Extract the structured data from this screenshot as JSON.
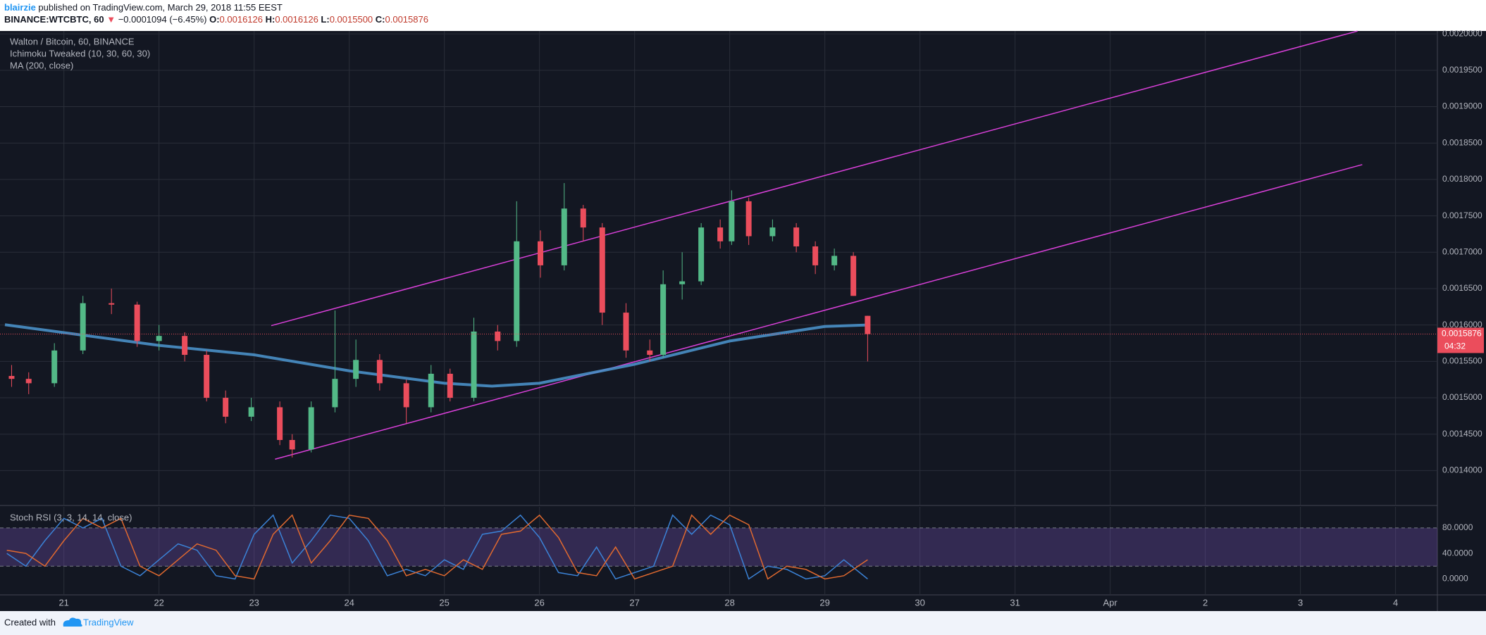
{
  "header": {
    "author": "blairzie",
    "published": "published on TradingView.com, March 29, 2018 11:55 EEST",
    "symbol": "BINANCE:WTCBTC, 60",
    "arrow": "▼",
    "change": "−0.0001094 (−6.45%)",
    "o_label": "O:",
    "open": "0.0016126",
    "h_label": "H:",
    "high": "0.0016126",
    "l_label": "L:",
    "low": "0.0015500",
    "c_label": "C:",
    "close": "0.0015876"
  },
  "footer": {
    "text": "Created with",
    "brand": "TradingView"
  },
  "chart_data": [
    {
      "type": "candlestick",
      "title": "Walton / Bitcoin, 60, BINANCE",
      "indicator": "Ichimoku Tweaked (10, 30, 60, 30)",
      "up_color": "#53b987",
      "down_color": "#eb4d5c",
      "x": [
        20.45,
        20.63,
        20.9,
        21.2,
        21.5,
        21.77,
        22,
        22.27,
        22.5,
        22.7,
        22.97,
        23.27,
        23.4,
        23.6,
        23.85,
        24.07,
        24.32,
        24.6,
        24.86,
        25.06,
        25.31,
        25.56,
        25.76,
        26.01,
        26.26,
        26.46,
        26.66,
        26.91,
        27.16,
        27.3,
        27.5,
        27.7,
        27.9,
        28.02,
        28.2,
        28.45,
        28.7,
        28.9,
        29.1,
        29.3,
        29.45
      ],
      "open": [
        0.00153,
        0.001526,
        0.00152,
        0.001565,
        0.00163,
        0.001628,
        0.001578,
        0.001585,
        0.001559,
        0.0015,
        0.001474,
        0.001487,
        0.001442,
        0.001429,
        0.001487,
        0.001526,
        0.001552,
        0.00152,
        0.001487,
        0.001533,
        0.0015,
        0.001591,
        0.001578,
        0.001715,
        0.001682,
        0.00176,
        0.001734,
        0.001617,
        0.001565,
        0.001559,
        0.001656,
        0.00166,
        0.001734,
        0.001715,
        0.00177,
        0.001722,
        0.001734,
        0.001708,
        0.001682,
        0.001695,
        0.0016126
      ],
      "high": [
        0.001545,
        0.001535,
        0.001575,
        0.00164,
        0.00165,
        0.001632,
        0.0016,
        0.00159,
        0.001565,
        0.00151,
        0.0015,
        0.001495,
        0.00145,
        0.001495,
        0.00162,
        0.00158,
        0.00156,
        0.001525,
        0.001545,
        0.00154,
        0.00161,
        0.0016,
        0.00177,
        0.00173,
        0.001795,
        0.001765,
        0.00174,
        0.00163,
        0.00158,
        0.001675,
        0.0017,
        0.00174,
        0.001745,
        0.001785,
        0.001775,
        0.001745,
        0.00174,
        0.001715,
        0.001705,
        0.0017,
        0.0016126
      ],
      "low": [
        0.001515,
        0.001505,
        0.001515,
        0.00156,
        0.001615,
        0.00157,
        0.001565,
        0.00155,
        0.001495,
        0.001465,
        0.001468,
        0.001435,
        0.001418,
        0.001425,
        0.00148,
        0.001515,
        0.00151,
        0.001465,
        0.00148,
        0.001495,
        0.001495,
        0.001565,
        0.00157,
        0.001665,
        0.001675,
        0.001715,
        0.0016,
        0.001555,
        0.00155,
        0.001555,
        0.001635,
        0.001655,
        0.001705,
        0.00171,
        0.00171,
        0.001715,
        0.0017,
        0.00167,
        0.001675,
        0.00164,
        0.00155
      ],
      "close": [
        0.001526,
        0.00152,
        0.001565,
        0.00163,
        0.001628,
        0.001578,
        0.001585,
        0.001559,
        0.0015,
        0.001474,
        0.001487,
        0.001442,
        0.001429,
        0.001487,
        0.001526,
        0.001552,
        0.00152,
        0.001487,
        0.001533,
        0.0015,
        0.001591,
        0.001578,
        0.001715,
        0.001682,
        0.00176,
        0.001734,
        0.001617,
        0.001565,
        0.001559,
        0.001656,
        0.00166,
        0.001734,
        0.001715,
        0.00177,
        0.001722,
        0.001734,
        0.001708,
        0.001682,
        0.001695,
        0.00164,
        0.0015876
      ],
      "ma": {
        "name": "MA (200, close)",
        "color": "#4a90c8",
        "x": [
          20.38,
          22,
          23,
          24,
          25,
          25.5,
          26,
          27,
          28,
          29,
          29.45
        ],
        "values": [
          0.0016004,
          0.001572,
          0.001559,
          0.001537,
          0.00152,
          0.001516,
          0.00152,
          0.001546,
          0.001578,
          0.001598,
          0.0016
        ]
      },
      "trendlines": [
        {
          "color": "#d940d9",
          "x": [
            23.18,
            34.6
          ],
          "values": [
            0.0015991,
            0.0020039
          ]
        },
        {
          "color": "#d940d9",
          "x": [
            23.22,
            34.65
          ],
          "values": [
            0.0014156,
            0.0018204
          ]
        }
      ],
      "last_price": {
        "value": 0.0015876,
        "label": "0.0015876"
      },
      "countdown": "04:32",
      "xlim": [
        20.38,
        35.44
      ],
      "ylim": [
        0.001353,
        0.002004
      ],
      "xticks": [
        21,
        22,
        23,
        24,
        25,
        26,
        27,
        28,
        29,
        30,
        31,
        {
          "value": 32,
          "label": "Apr"
        },
        {
          "value": 33,
          "label": "2"
        },
        {
          "value": 34,
          "label": "3"
        },
        {
          "value": 35,
          "label": "4"
        }
      ],
      "yticks": [
        {
          "value": 0.0014,
          "label": "0.0014000"
        },
        {
          "value": 0.00145,
          "label": "0.0014500"
        },
        {
          "value": 0.0015,
          "label": "0.0015000"
        },
        {
          "value": 0.00155,
          "label": "0.0015500"
        },
        {
          "value": 0.0016,
          "label": "0.0016000"
        },
        {
          "value": 0.00165,
          "label": "0.0016500"
        },
        {
          "value": 0.0017,
          "label": "0.0017000"
        },
        {
          "value": 0.00175,
          "label": "0.0017500"
        },
        {
          "value": 0.0018,
          "label": "0.0018000"
        },
        {
          "value": 0.00185,
          "label": "0.0018500"
        },
        {
          "value": 0.0019,
          "label": "0.0019000"
        },
        {
          "value": 0.00195,
          "label": "0.0019500"
        },
        {
          "value": 0.002,
          "label": "0.0020000"
        }
      ],
      "grid": true
    },
    {
      "type": "line",
      "title": "Stoch RSI (3, 3, 14, 14, close)",
      "band": [
        20,
        80
      ],
      "band_color": "#7e57c2",
      "x": [
        20.4,
        20.6,
        20.8,
        21,
        21.2,
        21.4,
        21.6,
        21.8,
        22,
        22.2,
        22.4,
        22.6,
        22.8,
        23,
        23.2,
        23.4,
        23.6,
        23.8,
        24,
        24.2,
        24.4,
        24.6,
        24.8,
        25,
        25.2,
        25.4,
        25.6,
        25.8,
        26,
        26.2,
        26.4,
        26.6,
        26.8,
        27,
        27.2,
        27.4,
        27.6,
        27.8,
        28,
        28.2,
        28.4,
        28.6,
        28.8,
        29,
        29.2,
        29.45
      ],
      "series": [
        {
          "color": "#3b82d6",
          "values": [
            40,
            20,
            60,
            95,
            80,
            95,
            20,
            5,
            30,
            55,
            45,
            5,
            0,
            70,
            100,
            25,
            60,
            100,
            95,
            60,
            5,
            15,
            5,
            30,
            15,
            70,
            75,
            100,
            65,
            10,
            5,
            50,
            0,
            10,
            20,
            100,
            70,
            100,
            85,
            0,
            20,
            15,
            0,
            5,
            30,
            0
          ]
        },
        {
          "color": "#e0692f",
          "values": [
            45,
            40,
            20,
            60,
            95,
            80,
            95,
            20,
            5,
            30,
            55,
            45,
            5,
            0,
            70,
            100,
            25,
            60,
            100,
            95,
            60,
            5,
            15,
            5,
            30,
            15,
            70,
            75,
            100,
            65,
            10,
            5,
            50,
            0,
            10,
            20,
            100,
            70,
            100,
            85,
            0,
            20,
            15,
            0,
            5,
            30
          ]
        }
      ],
      "xlim": [
        20.38,
        35.44
      ],
      "ylim": [
        -25,
        113
      ],
      "yticks": [
        {
          "value": 0,
          "label": "0.0000"
        },
        {
          "value": 40,
          "label": "40.0000"
        },
        {
          "value": 80,
          "label": "80.0000"
        }
      ]
    }
  ]
}
